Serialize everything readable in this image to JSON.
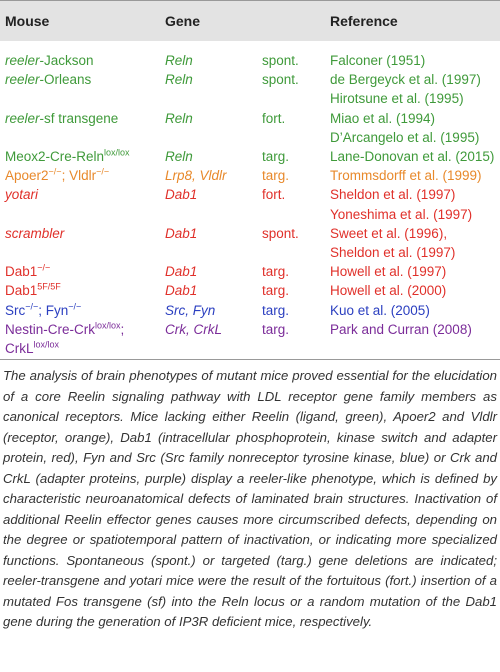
{
  "header": [
    "Mouse",
    "Gene",
    "Reference"
  ],
  "rows": [
    {
      "color": "#3f9a3a",
      "mouse": [
        [
          {
            "text": "reeler",
            "style": "italic"
          },
          {
            "text": "-Jackson"
          }
        ]
      ],
      "gene": [
        {
          "text": "Reln",
          "style": "italic"
        }
      ],
      "method": "spont.",
      "references": [
        "Falconer (1951)"
      ]
    },
    {
      "color": "#3f9a3a",
      "mouse": [
        [
          {
            "text": "reeler",
            "style": "italic"
          },
          {
            "text": "-Orleans"
          }
        ]
      ],
      "gene": [
        {
          "text": "Reln",
          "style": "italic"
        }
      ],
      "method": "spont.",
      "references": [
        "de Bergeyck et al. (1997)",
        "Hirotsune et al. (1995)"
      ]
    },
    {
      "color": "#3f9a3a",
      "mouse": [
        [
          {
            "text": "reeler",
            "style": "italic"
          },
          {
            "text": "-sf transgene"
          }
        ]
      ],
      "gene": [
        {
          "text": "Reln",
          "style": "italic"
        }
      ],
      "method": "fort.",
      "references": [
        "Miao et al. (1994)",
        "D’Arcangelo et al. (1995)"
      ]
    },
    {
      "color": "#3f9a3a",
      "mouse": [
        [
          {
            "text": "Meox2-Cre-Reln"
          },
          {
            "text": "lox/lox",
            "style": "sup"
          }
        ]
      ],
      "gene": [
        {
          "text": "Reln",
          "style": "italic"
        }
      ],
      "method": "targ.",
      "references": [
        "Lane-Donovan et al. (2015)"
      ]
    },
    {
      "color": "#e8892b",
      "mouse": [
        [
          {
            "text": "Apoer2"
          },
          {
            "text": "−/−",
            "style": "sup"
          },
          {
            "text": "; Vldlr"
          },
          {
            "text": "−/−",
            "style": "sup"
          }
        ]
      ],
      "gene": [
        {
          "text": "Lrp8, Vldlr",
          "style": "italic"
        }
      ],
      "method": "targ.",
      "references": [
        "Trommsdorff et al. (1999)"
      ]
    },
    {
      "color": "#e0302a",
      "mouse": [
        [
          {
            "text": "yotari",
            "style": "italic"
          }
        ]
      ],
      "gene": [
        {
          "text": "Dab1",
          "style": "italic"
        }
      ],
      "method": "fort.",
      "references": [
        "Sheldon et al. (1997)",
        "Yoneshima et al. (1997)"
      ]
    },
    {
      "color": "#e0302a",
      "mouse": [
        [
          {
            "text": "scrambler",
            "style": "italic"
          }
        ]
      ],
      "gene": [
        {
          "text": "Dab1",
          "style": "italic"
        }
      ],
      "method": "spont.",
      "references": [
        "Sweet et al. (1996),",
        "Sheldon et al. (1997)"
      ]
    },
    {
      "color": "#e0302a",
      "mouse": [
        [
          {
            "text": "Dab1"
          },
          {
            "text": "−/−",
            "style": "sup"
          }
        ]
      ],
      "gene": [
        {
          "text": "Dab1",
          "style": "italic"
        }
      ],
      "method": "targ.",
      "references": [
        "Howell et al. (1997)"
      ]
    },
    {
      "color": "#e0302a",
      "mouse": [
        [
          {
            "text": "Dab1"
          },
          {
            "text": "5F/5F",
            "style": "sup"
          }
        ]
      ],
      "gene": [
        {
          "text": "Dab1",
          "style": "italic"
        }
      ],
      "method": "targ.",
      "references": [
        "Howell et al. (2000)"
      ]
    },
    {
      "color": "#2b3fc0",
      "mouse": [
        [
          {
            "text": "Src"
          },
          {
            "text": "−/−",
            "style": "sup"
          },
          {
            "text": "; Fyn"
          },
          {
            "text": "−/−",
            "style": "sup"
          }
        ]
      ],
      "gene": [
        {
          "text": "Src, Fyn",
          "style": "italic"
        }
      ],
      "method": "targ.",
      "references": [
        "Kuo et al. (2005)"
      ]
    },
    {
      "color": "#7b2c99",
      "mouse": [
        [
          {
            "text": "Nestin-Cre-Crk"
          },
          {
            "text": "lox/lox",
            "style": "sup"
          },
          {
            "text": ";"
          }
        ],
        [
          {
            "text": "CrkL"
          },
          {
            "text": "lox/lox",
            "style": "sup"
          }
        ]
      ],
      "gene": [
        {
          "text": "Crk, CrkL",
          "style": "italic"
        }
      ],
      "method": "targ.",
      "references": [
        "Park and Curran (2008)"
      ]
    }
  ],
  "caption": "The analysis of brain phenotypes of mutant mice proved essential for the elucidation of a core Reelin signaling pathway with LDL receptor gene family members as canonical receptors. Mice lacking either Reelin (ligand, green), Apoer2 and Vldlr (receptor, orange), Dab1 (intracellular phosphoprotein, kinase switch and adapter protein, red), Fyn and Src (Src family nonreceptor tyrosine kinase, blue) or Crk and CrkL (adapter proteins, purple) display a reeler-like phenotype, which is defined by characteristic neuroanatomical defects of laminated brain structures. Inactivation of additional Reelin effector genes causes more circumscribed defects, depending on the degree or spatiotemporal pattern of inactivation, or indicating more specialized functions. Spontaneous (spont.) or targeted (targ.) gene deletions are indicated; reeler-transgene and yotari mice were the result of the fortuitous (fort.) insertion of a mutated Fos transgene (sf) into the Reln locus or a random mutation of the Dab1 gene during the generation of IP3R deficient mice, respectively."
}
